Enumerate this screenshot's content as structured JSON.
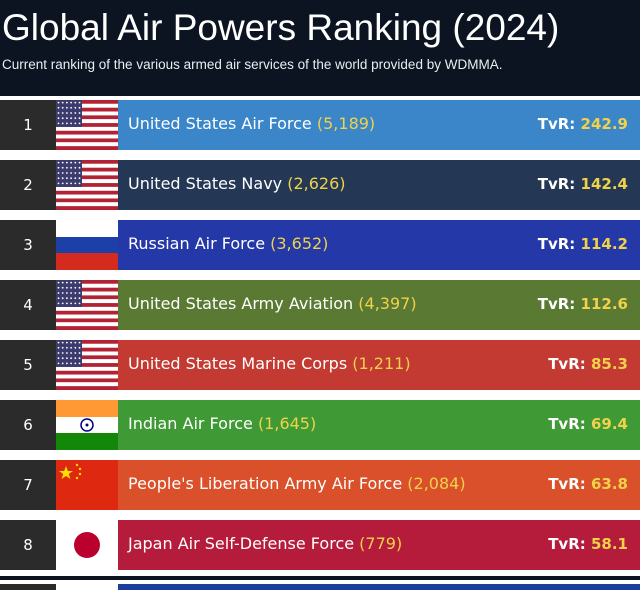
{
  "header": {
    "title": "Global Air Powers Ranking (2024)",
    "subtitle": "Current ranking of the various armed air services of the world provided by WDMMA."
  },
  "colors": {
    "rank_bg": "#2b2b2b",
    "count_text": "#f0d24a",
    "score_value": "#f0d24a"
  },
  "rows": [
    {
      "rank": "1",
      "flag": "usa-flag-icon",
      "name": "United States Air Force",
      "count": "(5,189)",
      "score_label": "TvR:",
      "score_value": "242.9",
      "bar_color": "#3a86c9"
    },
    {
      "rank": "2",
      "flag": "usa-flag-icon",
      "name": "United States Navy",
      "count": "(2,626)",
      "score_label": "TvR:",
      "score_value": "142.4",
      "bar_color": "#243754"
    },
    {
      "rank": "3",
      "flag": "russia-flag-icon",
      "name": "Russian Air Force",
      "count": "(3,652)",
      "score_label": "TvR:",
      "score_value": "114.2",
      "bar_color": "#2438a8"
    },
    {
      "rank": "4",
      "flag": "usa-flag-icon",
      "name": "United States Army Aviation",
      "count": "(4,397)",
      "score_label": "TvR:",
      "score_value": "112.6",
      "bar_color": "#5a7a33"
    },
    {
      "rank": "5",
      "flag": "usa-flag-icon",
      "name": "United States Marine Corps",
      "count": "(1,211)",
      "score_label": "TvR:",
      "score_value": "85.3",
      "bar_color": "#c23a32"
    },
    {
      "rank": "6",
      "flag": "india-flag-icon",
      "name": "Indian Air Force",
      "count": "(1,645)",
      "score_label": "TvR:",
      "score_value": "69.4",
      "bar_color": "#3f9a36"
    },
    {
      "rank": "7",
      "flag": "china-flag-icon",
      "name": "People's Liberation Army Air Force",
      "count": "(2,084)",
      "score_label": "TvR:",
      "score_value": "63.8",
      "bar_color": "#d9502a"
    },
    {
      "rank": "8",
      "flag": "japan-flag-icon",
      "name": "Japan Air Self-Defense Force",
      "count": "(779)",
      "score_label": "TvR:",
      "score_value": "58.1",
      "bar_color": "#b51c3b"
    }
  ]
}
